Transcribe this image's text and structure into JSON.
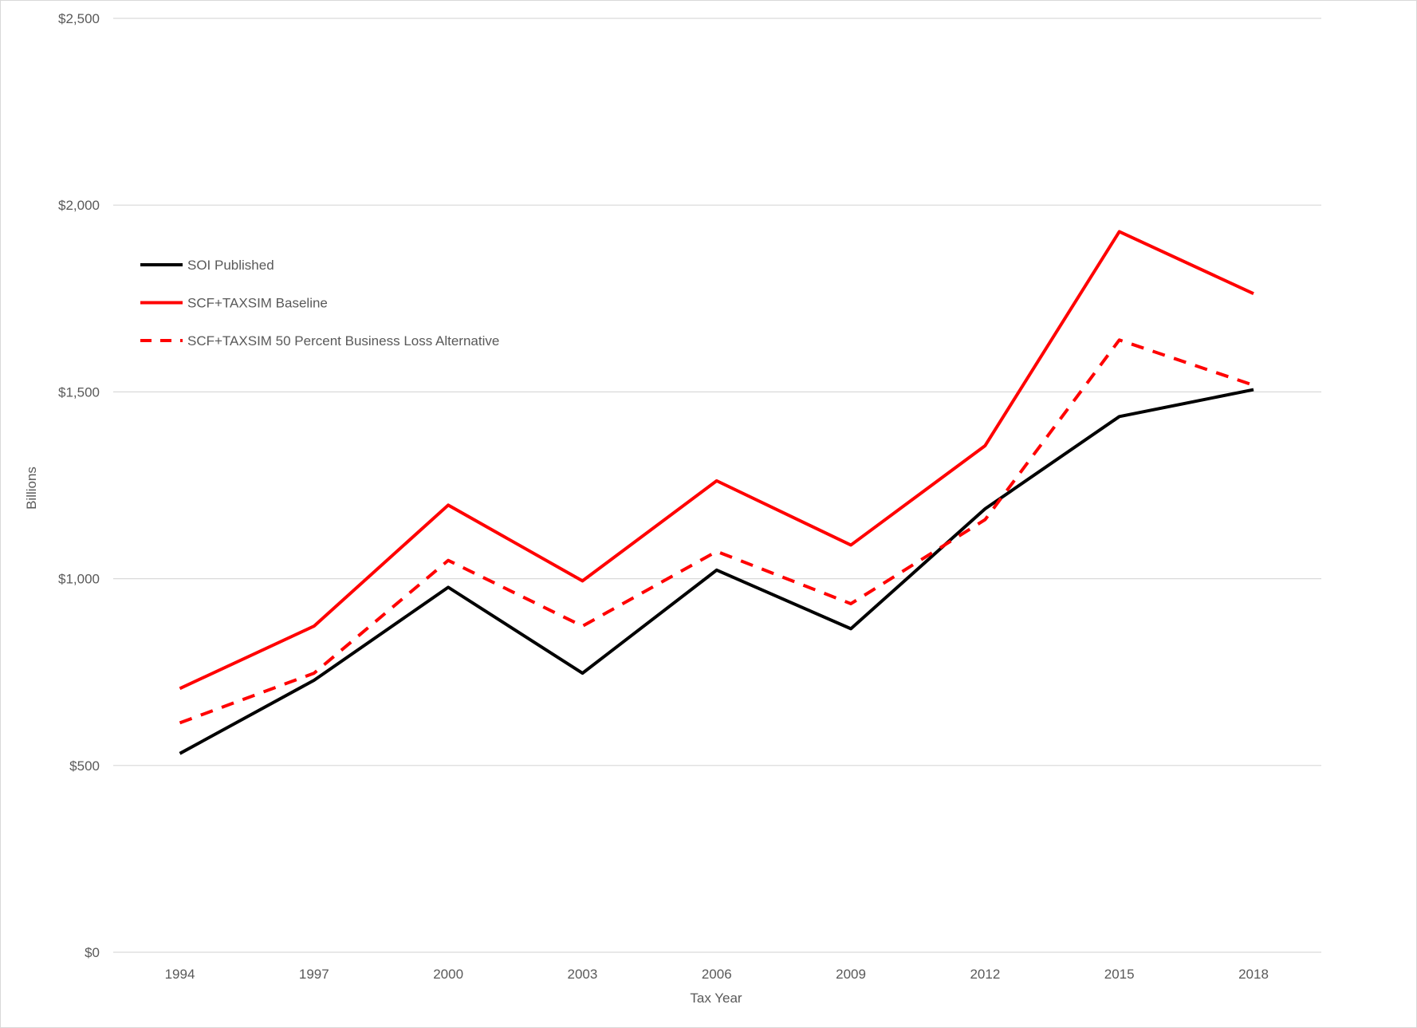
{
  "chart_data": {
    "type": "line",
    "title": "",
    "xlabel": "Tax Year",
    "ylabel": "Billions",
    "x": [
      "1994",
      "1997",
      "2000",
      "2003",
      "2006",
      "2009",
      "2012",
      "2015",
      "2018"
    ],
    "ylim": [
      0,
      2500
    ],
    "yticks": [
      0,
      500,
      1000,
      1500,
      2000,
      2500
    ],
    "ytick_labels": [
      "$0",
      "$500",
      "$1,000",
      "$1,500",
      "$2,000",
      "$2,500"
    ],
    "grid": true,
    "legend_position": "upper-left",
    "series": [
      {
        "name": "SOI Published",
        "color": "#000000",
        "dash": false,
        "values": [
          532,
          728,
          977,
          747,
          1023,
          866,
          1187,
          1434,
          1506
        ]
      },
      {
        "name": "SCF+TAXSIM Baseline",
        "color": "#ff0000",
        "dash": false,
        "values": [
          706,
          873,
          1197,
          994,
          1262,
          1090,
          1356,
          1929,
          1763
        ]
      },
      {
        "name": "SCF+TAXSIM 50 Percent Business Loss Alternative",
        "color": "#ff0000",
        "dash": true,
        "values": [
          614,
          747,
          1049,
          873,
          1073,
          933,
          1158,
          1639,
          1518
        ]
      }
    ]
  }
}
